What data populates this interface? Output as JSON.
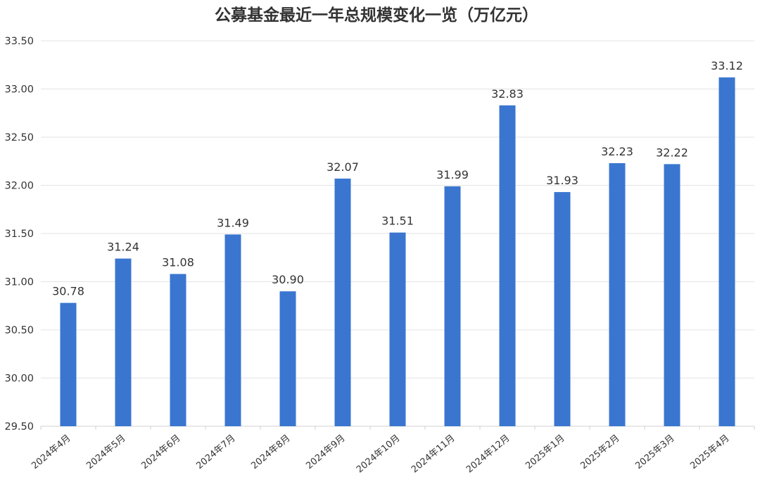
{
  "chart_data": {
    "type": "bar",
    "title": "公募基金最近一年总规模变化一览（万亿元）",
    "categories": [
      "2024年4月",
      "2024年5月",
      "2024年6月",
      "2024年7月",
      "2024年8月",
      "2024年9月",
      "2024年10月",
      "2024年11月",
      "2024年12月",
      "2025年1月",
      "2025年2月",
      "2025年3月",
      "2025年4月"
    ],
    "values": [
      30.78,
      31.24,
      31.08,
      31.49,
      30.9,
      32.07,
      31.51,
      31.99,
      32.83,
      31.93,
      32.23,
      32.22,
      33.12
    ],
    "value_labels": [
      "30.78",
      "31.24",
      "31.08",
      "31.49",
      "30.90",
      "32.07",
      "31.51",
      "31.99",
      "32.83",
      "31.93",
      "32.23",
      "32.22",
      "33.12"
    ],
    "y_ticks": [
      "29.50",
      "30.00",
      "30.50",
      "31.00",
      "31.50",
      "32.00",
      "32.50",
      "33.00",
      "33.50"
    ],
    "ylim": [
      29.5,
      33.5
    ],
    "xlabel": "",
    "ylabel": "",
    "grid": true,
    "legend": "none",
    "bar_color": "#3a76d0"
  }
}
